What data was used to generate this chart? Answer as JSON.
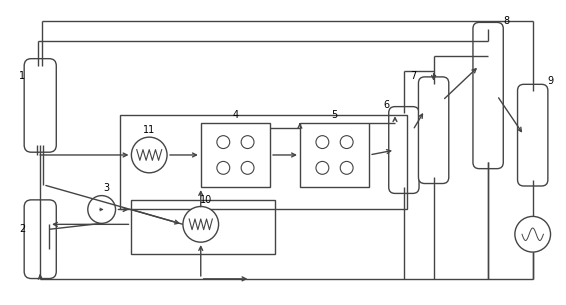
{
  "bg": "#ffffff",
  "lc": "#444444",
  "lw": 1.0,
  "fs": 7,
  "fig_w": 5.66,
  "fig_h": 3.05,
  "dpi": 100
}
